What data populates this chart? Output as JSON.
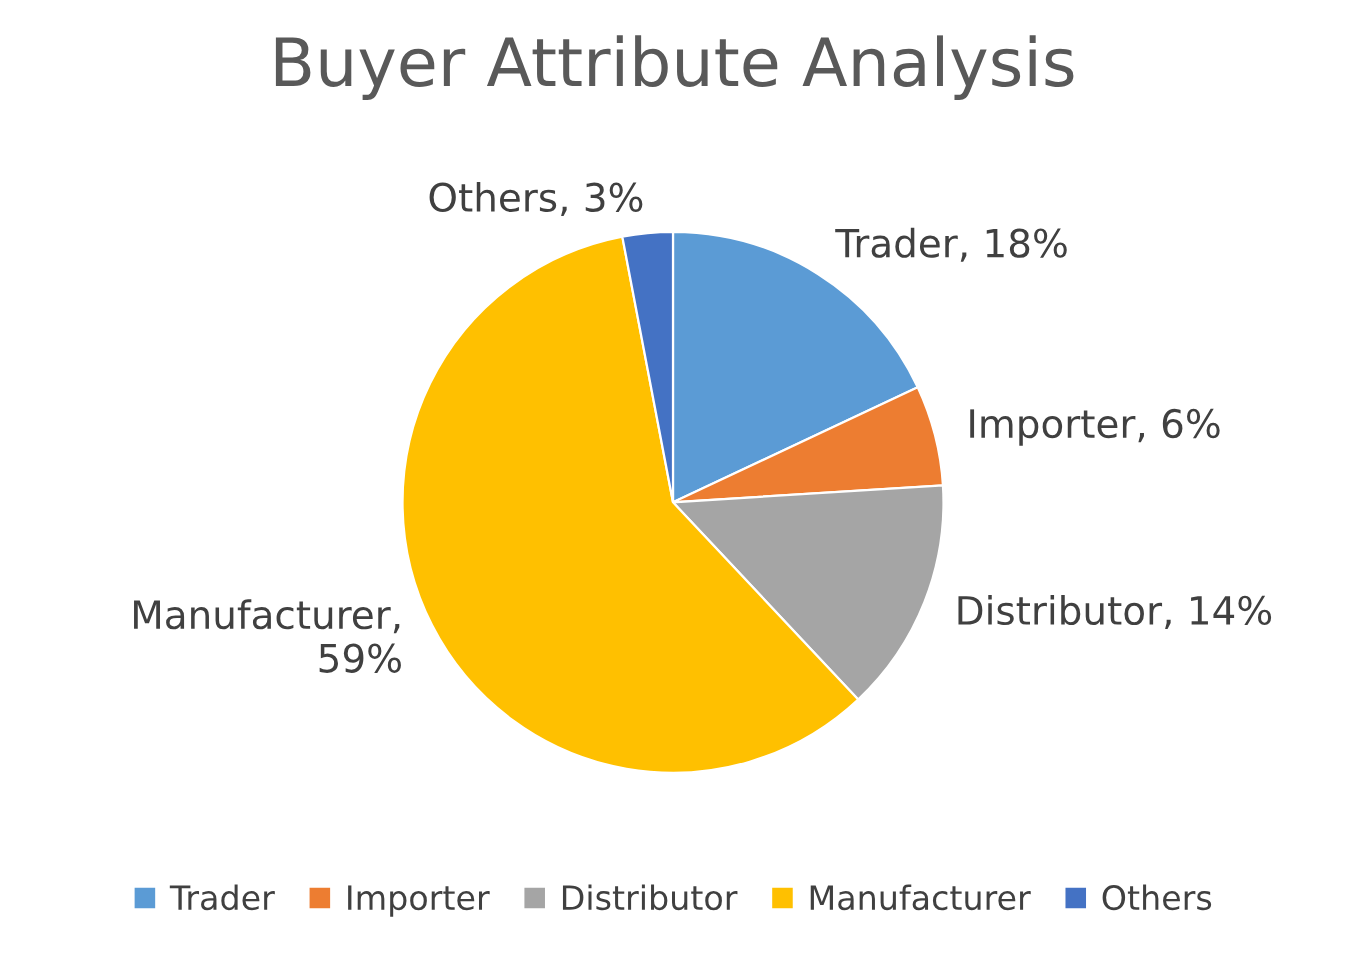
{
  "chart_data": {
    "type": "pie",
    "title": "Buyer Attribute Analysis",
    "categories": [
      "Trader",
      "Importer",
      "Distributor",
      "Manufacturer",
      "Others"
    ],
    "values": [
      18,
      6,
      14,
      59,
      3
    ],
    "colors": [
      "#5b9bd5",
      "#ed7d31",
      "#a5a5a5",
      "#ffc000",
      "#4472c4"
    ],
    "value_labels": [
      "Trader, 18%",
      "Importer, 6%",
      "Distributor, 14%",
      "Manufacturer,\n59%",
      "Others, 3%"
    ],
    "legend": "bottom"
  }
}
